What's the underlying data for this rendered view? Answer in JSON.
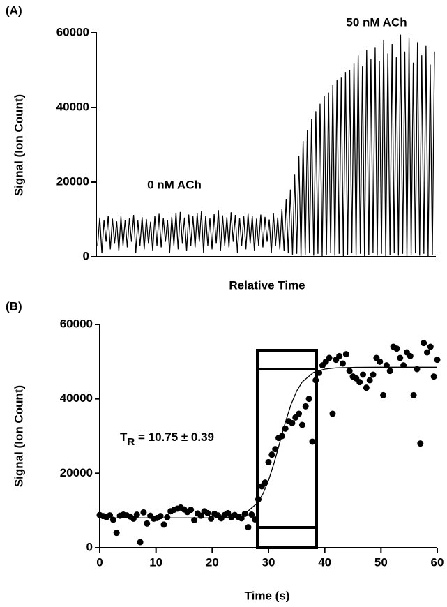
{
  "chart_data": [
    {
      "type": "line",
      "panel_label": "(A)",
      "y_label": "Signal (Ion Count)",
      "x_label": "Relative Time",
      "annotations": [
        "0 nM ACh",
        "50 nM ACh"
      ],
      "ylim": [
        0,
        60000
      ],
      "yticks": [
        0,
        20000,
        40000,
        60000
      ],
      "color": "#000000",
      "values": [
        3000,
        10500,
        1000,
        9800,
        4000,
        11000,
        2000,
        10200,
        3500,
        9500,
        1500,
        10800,
        3000,
        9900,
        2500,
        10300,
        4000,
        11200,
        1000,
        9700,
        3000,
        10600,
        2000,
        10100,
        3500,
        9400,
        1500,
        10900,
        3000,
        11500,
        2500,
        10400,
        4000,
        9800,
        1000,
        10700,
        3000,
        11800,
        2000,
        12000,
        3500,
        10500,
        1500,
        11300,
        3000,
        10800,
        2500,
        11600,
        4000,
        12200,
        1000,
        11000,
        3000,
        10300,
        2000,
        11400,
        3500,
        12500,
        1500,
        11100,
        3000,
        10600,
        2500,
        11900,
        4000,
        11200,
        1000,
        10400,
        3000,
        10800,
        2000,
        11500,
        3500,
        10900,
        1500,
        10200,
        3000,
        11300,
        2500,
        10700,
        4000,
        10000,
        1000,
        11600,
        3000,
        10500,
        2000,
        12800,
        1500,
        15500,
        1000,
        18000,
        500,
        22000,
        800,
        27000,
        0,
        31000,
        500,
        34000,
        1000,
        37000,
        300,
        39000,
        800,
        41000,
        0,
        43000,
        500,
        44000,
        1000,
        46000,
        300,
        47500,
        800,
        48000,
        0,
        49500,
        500,
        50000,
        1000,
        52000,
        300,
        54000,
        800,
        51000,
        0,
        55500,
        500,
        53000,
        1000,
        56000,
        300,
        52500,
        800,
        58000,
        0,
        54500,
        500,
        57000,
        1000,
        53500,
        300,
        59500,
        800,
        55000,
        0,
        58500,
        500,
        52000,
        1000,
        57500,
        300,
        54000,
        800,
        56500,
        0,
        51500,
        500,
        55000
      ]
    },
    {
      "type": "scatter",
      "panel_label": "(B)",
      "y_label": "Signal (Ion Count)",
      "x_label": "Time (s)",
      "annotation": {
        "main": "T",
        "sub": "R",
        "rest": " = 10.75 ± 0.39"
      },
      "xlim": [
        0,
        60
      ],
      "xticks": [
        0,
        10,
        20,
        30,
        40,
        50,
        60
      ],
      "ylim": [
        0,
        60000
      ],
      "yticks": [
        0,
        20000,
        40000,
        60000
      ],
      "color": "#000000",
      "x": [
        0,
        0.6,
        1.2,
        1.8,
        2.4,
        3,
        3.6,
        4.2,
        4.8,
        5.4,
        6,
        6.6,
        7.2,
        7.8,
        8.4,
        9,
        9.6,
        10.2,
        10.8,
        11.4,
        12,
        12.6,
        13.2,
        13.8,
        14.4,
        15,
        15.6,
        16.2,
        16.8,
        17.4,
        18,
        18.6,
        19.2,
        19.8,
        20.4,
        21,
        21.6,
        22.2,
        22.8,
        23.4,
        24,
        24.6,
        25.2,
        25.8,
        26.4,
        27,
        27.6,
        28.2,
        28.8,
        29.4,
        30,
        30.6,
        31.2,
        31.8,
        32.4,
        33,
        33.6,
        34.2,
        34.8,
        35.4,
        36,
        36.6,
        37.2,
        37.8,
        38.4,
        39,
        39.6,
        40.2,
        40.8,
        41.4,
        42,
        42.6,
        43.2,
        43.8,
        44.4,
        45,
        45.6,
        46.2,
        46.8,
        47.4,
        48,
        48.6,
        49.2,
        49.8,
        50.4,
        51,
        51.6,
        52.2,
        52.8,
        53.4,
        54,
        54.6,
        55.2,
        55.8,
        56.4,
        57,
        57.6,
        58.2,
        58.8,
        59.4,
        60
      ],
      "values": [
        8800,
        8500,
        8200,
        8700,
        7500,
        4000,
        8600,
        8900,
        8700,
        8400,
        7800,
        8900,
        1500,
        9500,
        6500,
        8600,
        7800,
        8000,
        8500,
        6200,
        8200,
        9800,
        10200,
        10500,
        10800,
        10300,
        9600,
        10200,
        7400,
        9200,
        8600,
        9800,
        9300,
        7800,
        9100,
        8700,
        7900,
        8800,
        9300,
        8200,
        8800,
        8300,
        7900,
        9100,
        5500,
        8900,
        7600,
        13000,
        16500,
        17500,
        23000,
        25000,
        26500,
        29500,
        30000,
        32000,
        34000,
        33500,
        35000,
        36000,
        33000,
        38000,
        40000,
        28500,
        45000,
        47000,
        49000,
        50000,
        51000,
        36000,
        50500,
        51500,
        49500,
        52000,
        47500,
        46000,
        45500,
        44500,
        46500,
        43000,
        45000,
        46500,
        51000,
        50000,
        41000,
        49000,
        47500,
        54000,
        53500,
        51000,
        49000,
        52500,
        51500,
        41000,
        48000,
        28000,
        55000,
        52500,
        54000,
        46000,
        50500
      ],
      "fit": {
        "x": [
          0,
          5,
          10,
          15,
          20,
          22,
          24,
          26,
          28,
          29,
          30,
          31,
          32,
          33,
          34,
          35,
          36,
          38,
          40,
          42,
          45,
          50,
          55,
          60
        ],
        "values": [
          8000,
          8000,
          8000,
          8000,
          8000,
          8050,
          8470,
          9400,
          11970,
          14440,
          18050,
          22780,
          28250,
          33720,
          38450,
          42060,
          44550,
          47100,
          48000,
          48330,
          48450,
          48500,
          48500,
          48500
        ]
      }
    }
  ]
}
